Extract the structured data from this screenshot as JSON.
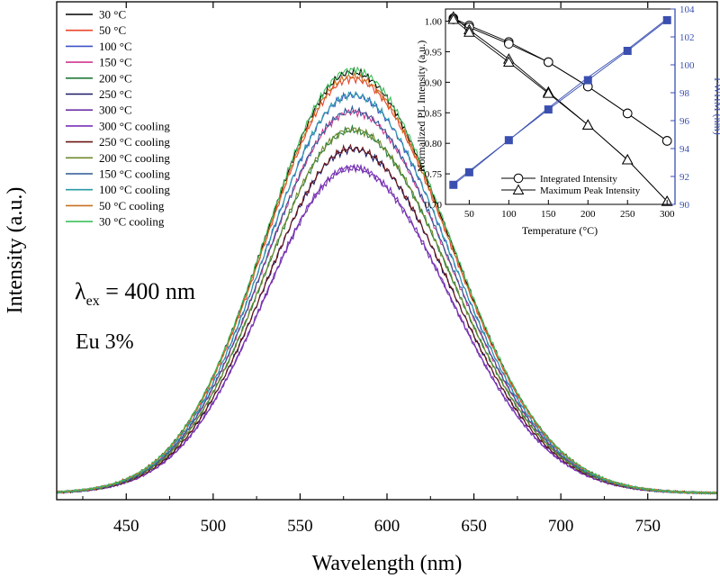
{
  "chart_data": [
    {
      "type": "line",
      "title": "",
      "xlabel": "Wavelength (nm)",
      "ylabel": "Intensity (a.u.)",
      "xlim": [
        410,
        790
      ],
      "ylim": [
        0,
        1.0
      ],
      "x_ticks": [
        450,
        500,
        550,
        600,
        650,
        700,
        750
      ],
      "y_ticks_shown": false,
      "annotations": {
        "excitation_main": "λ",
        "excitation_sub": "ex",
        "excitation_value": " = 400 nm",
        "doping": "Eu 3%"
      },
      "peak_center_nm": 580,
      "series": [
        {
          "name": "30 °C",
          "color": "#000000",
          "peak": 0.955
        },
        {
          "name": "50 °C",
          "color": "#e8442a",
          "peak": 0.94
        },
        {
          "name": "100 °C",
          "color": "#3d52c8",
          "peak": 0.902
        },
        {
          "name": "150 °C",
          "color": "#d0388f",
          "peak": 0.865
        },
        {
          "name": "200 °C",
          "color": "#217a3a",
          "peak": 0.823
        },
        {
          "name": "250 °C",
          "color": "#1a1a66",
          "peak": 0.78
        },
        {
          "name": "300 °C",
          "color": "#6e34a8",
          "peak": 0.737
        },
        {
          "name": "300 °C cooling",
          "color": "#7a2fb8",
          "peak": 0.739
        },
        {
          "name": "250 °C cooling",
          "color": "#6b1515",
          "peak": 0.782
        },
        {
          "name": "200 °C cooling",
          "color": "#6f8a2c",
          "peak": 0.825
        },
        {
          "name": "150 °C cooling",
          "color": "#2a5896",
          "peak": 0.867
        },
        {
          "name": "100 °C cooling",
          "color": "#2b9aa8",
          "peak": 0.904
        },
        {
          "name": "50 °C cooling",
          "color": "#c87020",
          "peak": 0.945
        },
        {
          "name": "30 °C cooling",
          "color": "#3cc05a",
          "peak": 0.96
        }
      ]
    },
    {
      "type": "line",
      "title": "",
      "xlabel": "Temperature (°C)",
      "ylabel": "Normalized PL Intensity (a.u.)",
      "ylabel_right": "FWHM (nm)",
      "xlim": [
        20,
        310
      ],
      "ylim": [
        0.7,
        1.02
      ],
      "ylim_right": [
        90,
        104
      ],
      "x_ticks": [
        50,
        100,
        150,
        200,
        250,
        300
      ],
      "y_ticks": [
        "0.70",
        "0.75",
        "0.80",
        "0.85",
        "0.90",
        "0.95",
        "1.00"
      ],
      "y_ticks_right": [
        "90",
        "92",
        "94",
        "96",
        "98",
        "100",
        "102",
        "104"
      ],
      "x": [
        30,
        50,
        100,
        150,
        200,
        250,
        300
      ],
      "series": [
        {
          "name": "Integrated Intensity",
          "marker": "circle",
          "axis": "left",
          "color": "#000000",
          "values": [
            1.005,
            0.993,
            0.966,
            0.933,
            0.893,
            0.849,
            0.804
          ],
          "cooling_values": [
            1.003,
            0.99,
            0.963,
            0.933,
            0.893,
            0.849,
            0.804
          ]
        },
        {
          "name": "Maximum Peak Intensity",
          "marker": "triangle",
          "axis": "left",
          "color": "#000000",
          "values": [
            1.007,
            0.986,
            0.938,
            0.884,
            0.83,
            0.773,
            0.705
          ],
          "cooling_values": [
            1.003,
            0.982,
            0.933,
            0.882,
            0.83,
            0.773,
            0.705
          ]
        },
        {
          "name": "FWHM",
          "marker": "square",
          "axis": "right",
          "color": "#3a4fb0",
          "values": [
            91.4,
            92.3,
            94.6,
            96.8,
            98.9,
            101.0,
            103.2
          ],
          "cooling_values": [
            91.5,
            92.4,
            94.6,
            96.9,
            99.1,
            101.1,
            103.3
          ]
        }
      ]
    }
  ]
}
